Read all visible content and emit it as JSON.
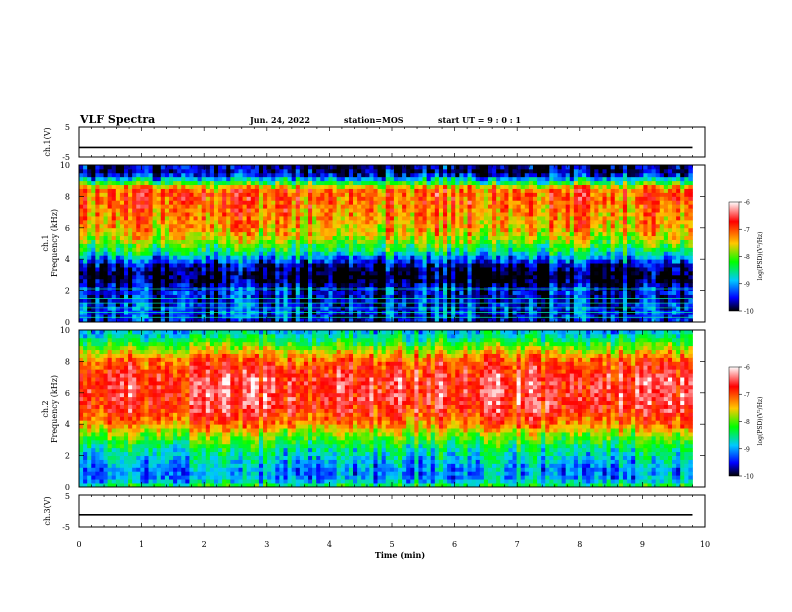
{
  "header": {
    "title": "VLF Spectra",
    "date": "Jun. 24, 2022",
    "station": "station=MOS",
    "start": "start UT =  9 : 0  : 1"
  },
  "colorbar": {
    "label": "log(PSD)(V²/Hz)",
    "ticks": [
      "-6",
      "-7",
      "-8",
      "-9",
      "-10"
    ],
    "colors": [
      "#ffffff",
      "#ff0000",
      "#ffc800",
      "#00ff00",
      "#00c8ff",
      "#0000ff",
      "#000000"
    ]
  },
  "chart_data": [
    {
      "type": "line",
      "name": "ch.1 voltage",
      "ylabel": "ch.1(V)",
      "xlim": [
        0,
        10
      ],
      "ylim": [
        -5,
        5
      ],
      "yticks": [
        "5",
        "-5"
      ],
      "x": [
        0,
        0.5,
        1.0,
        1.5,
        2.0,
        2.5,
        3.0,
        3.5,
        4.0,
        4.5,
        5.0,
        5.5,
        6.0,
        6.5,
        7.0,
        7.5,
        8.0,
        8.5,
        9.0,
        9.5,
        9.8
      ],
      "values": [
        -1.8,
        -1.8,
        -1.8,
        -1.8,
        -1.8,
        -1.8,
        -1.8,
        -1.8,
        -1.8,
        -1.8,
        -1.8,
        -1.8,
        -1.8,
        -1.8,
        -1.8,
        -1.8,
        -1.8,
        -1.8,
        -1.8,
        -1.8,
        -1.8
      ]
    },
    {
      "type": "heatmap",
      "name": "ch.1 spectrogram",
      "ylabel": "ch.1\nFrequency (kHz)",
      "xlim": [
        0,
        10
      ],
      "ylim": [
        0,
        10
      ],
      "yticks": [
        "0",
        "2",
        "4",
        "6",
        "8",
        "10"
      ],
      "profile_freq_khz": [
        0,
        0.5,
        1,
        1.5,
        2,
        2.5,
        3,
        3.5,
        4,
        4.5,
        5,
        5.5,
        6,
        6.5,
        7,
        7.5,
        8,
        8.5,
        9,
        9.5,
        10
      ],
      "profile_log_psd": [
        -9.6,
        -9.4,
        -9.4,
        -9.6,
        -9.4,
        -9.9,
        -10,
        -9.8,
        -9.2,
        -8.5,
        -8.0,
        -7.6,
        -7.4,
        -7.3,
        -7.2,
        -7.1,
        -7.0,
        -7.1,
        -8.6,
        -9.8,
        -9.7
      ]
    },
    {
      "type": "heatmap",
      "name": "ch.2 spectrogram",
      "ylabel": "ch.2\nFrequency (kHz)",
      "xlim": [
        0,
        10
      ],
      "ylim": [
        0,
        10
      ],
      "yticks": [
        "0",
        "2",
        "4",
        "6",
        "8",
        "10"
      ],
      "profile_freq_khz": [
        0,
        0.5,
        1,
        1.5,
        2,
        2.5,
        3,
        3.5,
        4,
        4.5,
        5,
        5.5,
        6,
        6.5,
        7,
        7.5,
        8,
        8.5,
        9,
        9.5,
        10
      ],
      "profile_log_psd": [
        -8.2,
        -9.0,
        -9.1,
        -8.9,
        -8.7,
        -8.5,
        -8.1,
        -7.7,
        -7.2,
        -6.9,
        -6.7,
        -6.6,
        -6.6,
        -6.6,
        -6.6,
        -6.8,
        -7.0,
        -7.4,
        -8.0,
        -8.5,
        -8.9
      ]
    },
    {
      "type": "line",
      "name": "ch.3 voltage",
      "ylabel": "ch.3(V)",
      "xlim": [
        0,
        10
      ],
      "ylim": [
        -5,
        5
      ],
      "yticks": [
        "5",
        "-5"
      ],
      "xlabel": "Time (min)",
      "xticks": [
        "0",
        "1",
        "2",
        "3",
        "4",
        "5",
        "6",
        "7",
        "8",
        "9",
        "10"
      ],
      "x": [
        0,
        0.5,
        1.0,
        1.5,
        2.0,
        2.5,
        3.0,
        3.5,
        4.0,
        4.5,
        5.0,
        5.5,
        6.0,
        6.5,
        7.0,
        7.5,
        8.0,
        8.5,
        9.0,
        9.5,
        9.8
      ],
      "values": [
        -1.2,
        -1.2,
        -1.2,
        -1.2,
        -1.2,
        -1.2,
        -1.2,
        -1.2,
        -1.2,
        -1.2,
        -1.2,
        -1.2,
        -1.2,
        -1.2,
        -1.2,
        -1.2,
        -1.2,
        -1.2,
        -1.2,
        -1.2,
        -1.2
      ]
    }
  ]
}
